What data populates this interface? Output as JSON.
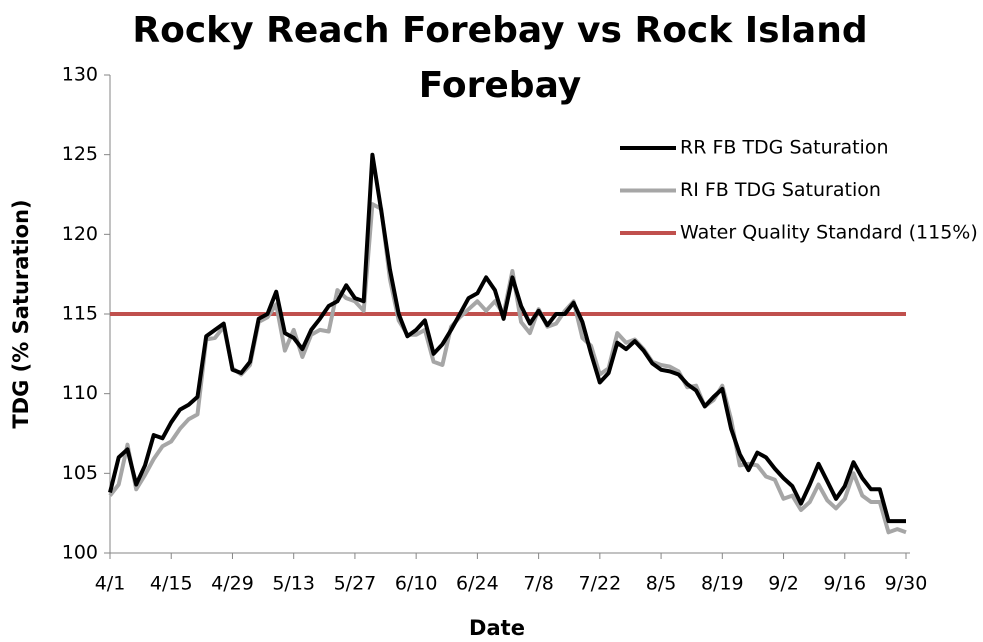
{
  "chart_data": {
    "type": "line",
    "title": "Rocky Reach Forebay vs Rock Island Forebay",
    "xlabel": "Date",
    "ylabel": "TDG (% Saturation)",
    "categories": [
      "4/1",
      null,
      null,
      null,
      null,
      null,
      null,
      "4/15",
      null,
      null,
      null,
      null,
      null,
      null,
      "4/29",
      null,
      null,
      null,
      null,
      null,
      null,
      "5/13",
      null,
      null,
      null,
      null,
      null,
      null,
      "5/27",
      null,
      null,
      null,
      null,
      null,
      null,
      "6/10",
      null,
      null,
      null,
      null,
      null,
      null,
      "6/24",
      null,
      null,
      null,
      null,
      null,
      null,
      "7/8",
      null,
      null,
      null,
      null,
      null,
      null,
      "7/22",
      null,
      null,
      null,
      null,
      null,
      null,
      "8/5",
      null,
      null,
      null,
      null,
      null,
      null,
      "8/19",
      null,
      null,
      null,
      null,
      null,
      null,
      "9/2",
      null,
      null,
      null,
      null,
      null,
      null,
      "9/16",
      null,
      null,
      null,
      null,
      null,
      null,
      "9/30"
    ],
    "series": [
      {
        "name": "RR FB TDG Saturation",
        "color": "#000000",
        "values": [
          103.8,
          106,
          106.5,
          104.3,
          105.5,
          107.4,
          107.2,
          108.2,
          109,
          109.3,
          109.8,
          113.6,
          114,
          114.4,
          111.5,
          111.3,
          112,
          114.7,
          115,
          116.4,
          113.8,
          113.5,
          112.8,
          114,
          114.7,
          115.5,
          115.8,
          116.8,
          116,
          115.8,
          125,
          121.5,
          117.8,
          115,
          113.6,
          114,
          114.6,
          112.5,
          113.1,
          114,
          115,
          116,
          116.3,
          117.3,
          116.5,
          114.7,
          117.3,
          115.5,
          114.4,
          115.2,
          114.3,
          115,
          115,
          115.7,
          114.5,
          112.5,
          110.7,
          111.3,
          113.2,
          112.8,
          113.3,
          112.7,
          111.9,
          111.5,
          111.4,
          111.2,
          110.6,
          110.2,
          109.2,
          109.8,
          110.3,
          107.8,
          106.2,
          105.2,
          106.3,
          106,
          105.3,
          104.7,
          104.2,
          103.1,
          104.3,
          105.6,
          104.5,
          103.4,
          104.2,
          105.7,
          104.7,
          104,
          104,
          102,
          102,
          102
        ]
      },
      {
        "name": "RI FB TDG Saturation",
        "color": "#a6a6a6",
        "values": [
          103.6,
          104.3,
          106.8,
          104,
          104.9,
          105.9,
          106.7,
          107,
          107.8,
          108.4,
          108.7,
          113.4,
          113.5,
          114.2,
          111.6,
          111.2,
          111.8,
          114.5,
          114.8,
          115.6,
          112.7,
          114,
          112.3,
          113.7,
          114,
          113.9,
          116.5,
          116,
          115.8,
          115.2,
          121.9,
          121.6,
          117.2,
          114.6,
          113.7,
          113.7,
          114,
          112,
          111.8,
          114.2,
          114.8,
          115.3,
          115.8,
          115.2,
          115.8,
          115,
          117.7,
          114.5,
          113.8,
          115.3,
          114.2,
          114.4,
          115.2,
          115.8,
          113.5,
          113,
          111.2,
          111.6,
          113.8,
          113.2,
          113.4,
          112.8,
          112,
          111.8,
          111.7,
          111.4,
          110.4,
          110.5,
          109.2,
          109.6,
          110.5,
          108.4,
          105.5,
          105.6,
          105.5,
          104.8,
          104.6,
          103.4,
          103.6,
          102.7,
          103.2,
          104.3,
          103.3,
          102.8,
          103.4,
          105,
          103.6,
          103.2,
          103.2,
          101.3,
          101.5,
          101.3
        ]
      }
    ],
    "reference_lines": [
      {
        "name": "Water Quality Standard (115%)",
        "value": 115,
        "color": "#c0504d"
      }
    ],
    "ylim": [
      100,
      130
    ],
    "yticks": [
      100,
      105,
      110,
      115,
      120,
      125,
      130
    ],
    "legend": "upper right",
    "grid": false
  }
}
